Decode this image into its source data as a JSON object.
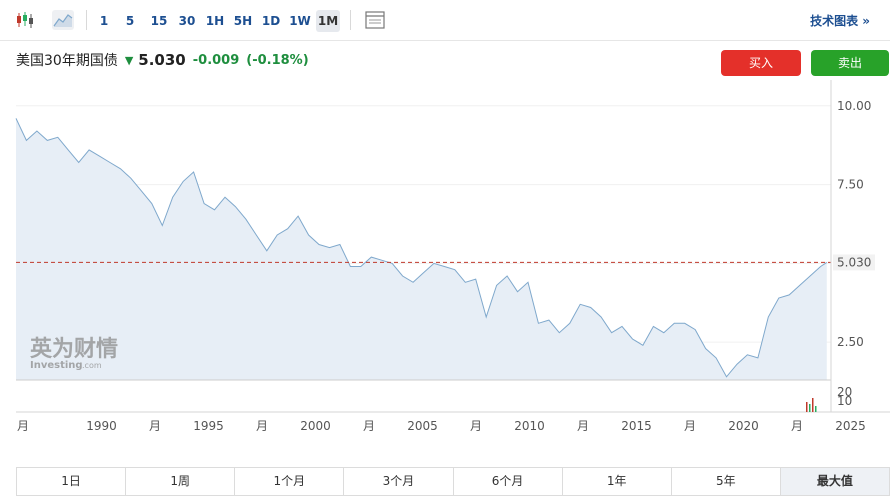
{
  "toolbar": {
    "icons": [
      "candlestick-icon",
      "area-chart-icon",
      "indicators-icon"
    ],
    "intervals": [
      "1",
      "5",
      "15",
      "30",
      "1H",
      "5H",
      "1D",
      "1W",
      "1M"
    ],
    "active_interval": "1M",
    "technical_chart_label": "技术图表 »"
  },
  "instrument": {
    "name": "美国30年期国债",
    "direction_icon": "arrow-down-icon",
    "price": "5.030",
    "change": "-0.009",
    "change_pct": "(-0.18%)"
  },
  "actions": {
    "buy_label": "买入",
    "sell_label": "卖出"
  },
  "colors": {
    "buy": "#e4302a",
    "sell": "#28a229",
    "change": "#1e8e3e",
    "line": "#7fa8cc",
    "area": "#e7eef6",
    "reference_line": "#c0392b"
  },
  "watermark": {
    "cn": "英为财情",
    "en": "Investing",
    "suffix": ".com"
  },
  "chart_data": {
    "type": "area",
    "title": "",
    "xlabel": "",
    "ylabel": "",
    "ylim": [
      1.3,
      10.5
    ],
    "x_tick_labels": [
      "月",
      "1990",
      "月",
      "1995",
      "月",
      "2000",
      "月",
      "2005",
      "月",
      "2010",
      "月",
      "2015",
      "月",
      "2020",
      "月",
      "2025"
    ],
    "y_ticks": [
      "10.00",
      "7.50",
      "5.030",
      "2.50"
    ],
    "current_value": 5.03,
    "current_value_label": "5.030",
    "volume_axis_labels": [
      "20",
      "10"
    ],
    "series": [
      {
        "x": [
          1986.5,
          1987,
          1987.5,
          1988,
          1988.5,
          1989,
          1989.5,
          1990,
          1990.5,
          1991,
          1991.5,
          1992,
          1992.5,
          1993,
          1993.5,
          1994,
          1994.5,
          1995,
          1995.5,
          1996,
          1996.5,
          1997,
          1997.5,
          1998,
          1998.5,
          1999,
          1999.5,
          2000,
          2000.5,
          2001,
          2001.5,
          2002,
          2002.5,
          2003,
          2003.5,
          2004,
          2004.5,
          2005,
          2005.5,
          2006,
          2006.5,
          2007,
          2007.5,
          2008,
          2008.5,
          2009,
          2009.5,
          2010,
          2010.5,
          2011,
          2011.5,
          2012,
          2012.5,
          2013,
          2013.5,
          2014,
          2014.5,
          2015,
          2015.5,
          2016,
          2016.5,
          2017,
          2017.5,
          2018,
          2018.5,
          2019,
          2019.5,
          2020,
          2020.5,
          2021,
          2021.5,
          2022,
          2022.5,
          2023,
          2023.5,
          2024,
          2024.5,
          2025,
          2025.3
        ],
        "values": [
          9.6,
          8.9,
          9.2,
          8.9,
          9.0,
          8.6,
          8.2,
          8.6,
          8.4,
          8.2,
          8.0,
          7.7,
          7.3,
          6.9,
          6.2,
          7.1,
          7.6,
          7.9,
          6.9,
          6.7,
          7.1,
          6.8,
          6.4,
          5.9,
          5.4,
          5.9,
          6.1,
          6.5,
          5.9,
          5.6,
          5.5,
          5.6,
          4.9,
          4.9,
          5.2,
          5.1,
          5.0,
          4.6,
          4.4,
          4.7,
          5.0,
          4.9,
          4.8,
          4.4,
          4.5,
          3.3,
          4.3,
          4.6,
          4.1,
          4.4,
          3.1,
          3.2,
          2.8,
          3.1,
          3.7,
          3.6,
          3.3,
          2.8,
          3.0,
          2.6,
          2.4,
          3.0,
          2.8,
          3.1,
          3.1,
          2.9,
          2.3,
          2.0,
          1.4,
          1.8,
          2.1,
          2.0,
          3.3,
          3.9,
          4.0,
          4.3,
          4.6,
          4.9,
          5.03
        ]
      }
    ]
  }
}
